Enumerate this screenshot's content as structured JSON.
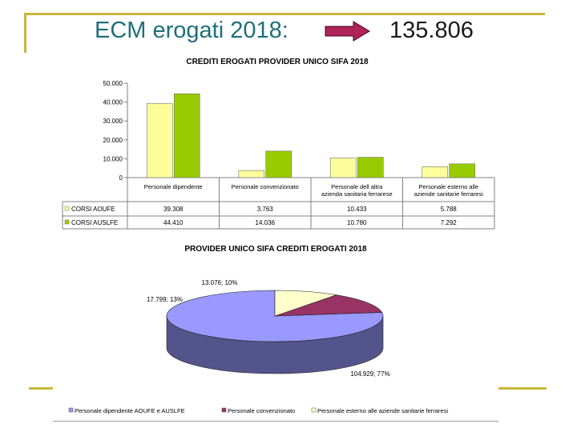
{
  "slide": {
    "heading": "ECM erogati 2018:",
    "total": "135.806",
    "accent_color": "#c9b73a",
    "arrow_color": "#b0245a"
  },
  "chart_data": [
    {
      "type": "bar",
      "title": "CREDITI EROGATI PROVIDER  UNICO SIFA 2018",
      "categories": [
        "Personale dipendente",
        "Personale convenzionato",
        "Personale dell altra azienda sanitaria ferrarese",
        "Personale esterno alle aziende sanitarie ferraresi"
      ],
      "category_lines": [
        [
          "Personale dipendente"
        ],
        [
          "Personale convenzionato"
        ],
        [
          "Personale dell altra",
          "azienda sanitaria ferrarese"
        ],
        [
          "Personale esterno alle",
          "aziende sanitarie ferraresi"
        ]
      ],
      "series": [
        {
          "name": "CORSI AOUFE",
          "values": [
            39308,
            3763,
            10433,
            5788
          ],
          "labels": [
            "39.308",
            "3.763",
            "10.433",
            "5.788"
          ],
          "color": "#fdfd9c"
        },
        {
          "name": "CORSI AUSLFE",
          "values": [
            44410,
            14036,
            10780,
            7292
          ],
          "labels": [
            "44.410",
            "14.036",
            "10.780",
            "7.292"
          ],
          "color": "#99cc00"
        }
      ],
      "ylim": [
        0,
        50000
      ],
      "yticks": [
        0,
        10000,
        20000,
        30000,
        40000,
        50000
      ],
      "ytick_labels": [
        "0",
        "10.000",
        "20.000",
        "30.000",
        "40.000",
        "50.000"
      ],
      "grid": false,
      "legend": "data-table"
    },
    {
      "type": "pie",
      "title": "PROVIDER UNICO SIFA CREDITI EROGATI 2018",
      "slices": [
        {
          "name": "Personale dipendente AOUFE e AUSLFE",
          "value": 104929,
          "percent": 77,
          "label": "104.929; 77%",
          "color": "#9999ff"
        },
        {
          "name": "Personale convenzionato",
          "value": 17799,
          "percent": 13,
          "label": "17.799; 13%",
          "color": "#993366"
        },
        {
          "name": "Personale esterno alle aziende sanitarie ferraresi",
          "value": 13076,
          "percent": 10,
          "label": "13.076; 10%",
          "color": "#ffffcc"
        }
      ],
      "legend": "bottom"
    }
  ]
}
